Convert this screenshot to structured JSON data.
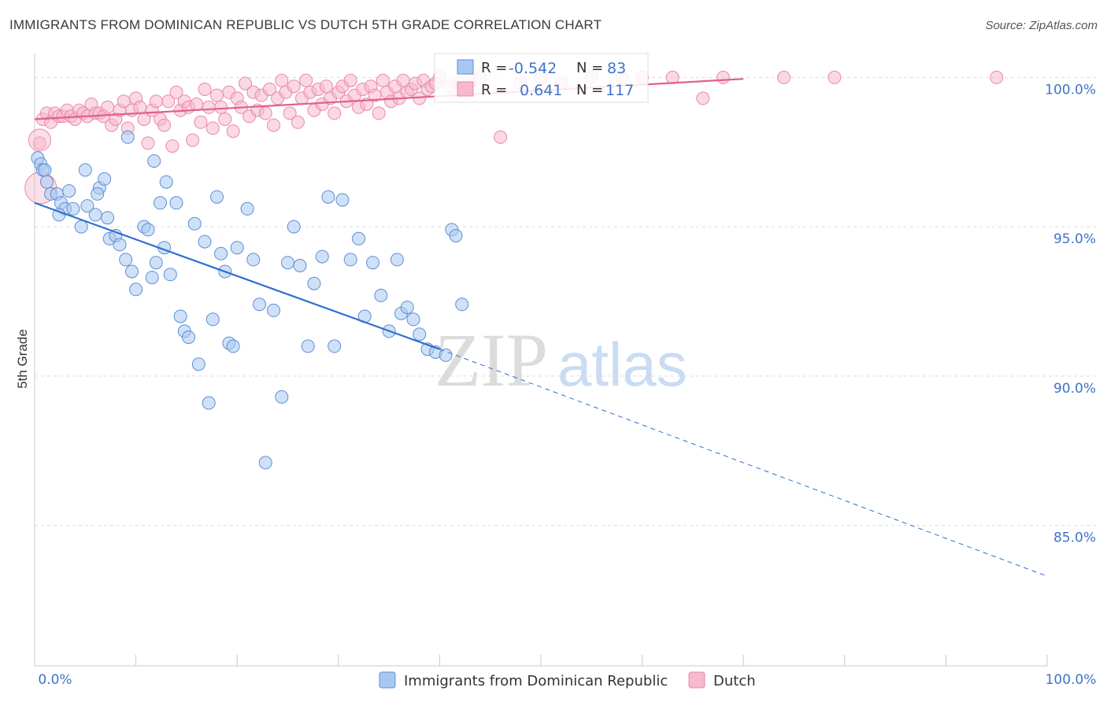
{
  "header": {
    "title": "IMMIGRANTS FROM DOMINICAN REPUBLIC VS DUTCH 5TH GRADE CORRELATION CHART",
    "source": "Source: ZipAtlas.com"
  },
  "watermark": {
    "zip": "ZIP",
    "atlas": "atlas"
  },
  "colors": {
    "blue_fill": "#a9c8f1",
    "blue_stroke": "#5b8fd6",
    "blue_line": "#2f6fd0",
    "pink_fill": "#f6b8cd",
    "pink_stroke": "#ea88aa",
    "pink_line": "#e0608d",
    "tick_text": "#3f74c9",
    "grid": "#dedede"
  },
  "legend": {
    "rows": [
      {
        "r_label": "R = ",
        "r_value": "-0.542",
        "n_label": "N = ",
        "n_value": "83",
        "series": "blue"
      },
      {
        "r_label": "R = ",
        "r_value": "0.641",
        "n_label": "N = ",
        "n_value": "117",
        "series": "pink"
      }
    ]
  },
  "chart_data": {
    "type": "scatter",
    "title": "IMMIGRANTS FROM DOMINICAN REPUBLIC VS DUTCH 5TH GRADE CORRELATION CHART",
    "xlabel": "",
    "ylabel": "5th Grade",
    "xlim": [
      0,
      100
    ],
    "ylim": [
      80.3,
      100.8
    ],
    "x_tick_labels": [
      "0.0%",
      "100.0%"
    ],
    "y_ticks": [
      85,
      90,
      95,
      100
    ],
    "y_tick_labels": [
      "85.0%",
      "90.0%",
      "95.0%",
      "100.0%"
    ],
    "grid": true,
    "legend_position": "bottom",
    "series": [
      {
        "name": "Immigrants from Dominican Republic",
        "color": "#a9c8f1",
        "r": -0.542,
        "n": 83,
        "trend": {
          "x0": 0,
          "y0": 95.8,
          "x1": 40,
          "y1": 90.9,
          "dashed_to_x": 100,
          "dashed_to_y": 83.3
        },
        "points": [
          [
            0.3,
            97.3
          ],
          [
            0.6,
            97.1
          ],
          [
            0.8,
            96.9
          ],
          [
            1.0,
            96.9
          ],
          [
            1.2,
            96.5
          ],
          [
            1.6,
            96.1
          ],
          [
            2.2,
            96.1
          ],
          [
            2.6,
            95.8
          ],
          [
            3.0,
            95.6
          ],
          [
            3.4,
            96.2
          ],
          [
            2.4,
            95.4
          ],
          [
            3.8,
            95.6
          ],
          [
            4.6,
            95.0
          ],
          [
            5.0,
            96.9
          ],
          [
            5.2,
            95.7
          ],
          [
            6.0,
            95.4
          ],
          [
            6.4,
            96.3
          ],
          [
            6.9,
            96.6
          ],
          [
            7.2,
            95.3
          ],
          [
            7.4,
            94.6
          ],
          [
            6.2,
            96.1
          ],
          [
            8.0,
            94.7
          ],
          [
            8.4,
            94.4
          ],
          [
            9.0,
            93.9
          ],
          [
            9.6,
            93.5
          ],
          [
            10.0,
            92.9
          ],
          [
            10.8,
            95.0
          ],
          [
            11.2,
            94.9
          ],
          [
            11.6,
            93.3
          ],
          [
            12.0,
            93.8
          ],
          [
            12.4,
            95.8
          ],
          [
            12.8,
            94.3
          ],
          [
            13.4,
            93.4
          ],
          [
            14.0,
            95.8
          ],
          [
            14.4,
            92.0
          ],
          [
            14.8,
            91.5
          ],
          [
            15.2,
            91.3
          ],
          [
            15.8,
            95.1
          ],
          [
            16.2,
            90.4
          ],
          [
            16.8,
            94.5
          ],
          [
            17.2,
            89.1
          ],
          [
            17.6,
            91.9
          ],
          [
            18.0,
            96.0
          ],
          [
            18.4,
            94.1
          ],
          [
            18.8,
            93.5
          ],
          [
            19.2,
            91.1
          ],
          [
            19.6,
            91.0
          ],
          [
            20.0,
            94.3
          ],
          [
            21.0,
            95.6
          ],
          [
            21.6,
            93.9
          ],
          [
            22.2,
            92.4
          ],
          [
            22.8,
            87.1
          ],
          [
            23.6,
            92.2
          ],
          [
            24.4,
            89.3
          ],
          [
            25.0,
            93.8
          ],
          [
            25.6,
            95.0
          ],
          [
            26.2,
            93.7
          ],
          [
            27.0,
            91.0
          ],
          [
            27.6,
            93.1
          ],
          [
            28.4,
            94.0
          ],
          [
            29.0,
            96.0
          ],
          [
            29.6,
            91.0
          ],
          [
            30.4,
            95.9
          ],
          [
            31.2,
            93.9
          ],
          [
            32.0,
            94.6
          ],
          [
            32.6,
            92.0
          ],
          [
            33.4,
            93.8
          ],
          [
            34.2,
            92.7
          ],
          [
            35.0,
            91.5
          ],
          [
            35.8,
            93.9
          ],
          [
            36.2,
            92.1
          ],
          [
            36.8,
            92.3
          ],
          [
            37.4,
            91.9
          ],
          [
            38.0,
            91.4
          ],
          [
            38.8,
            90.9
          ],
          [
            39.6,
            90.8
          ],
          [
            40.6,
            90.7
          ],
          [
            41.2,
            94.9
          ],
          [
            41.6,
            94.7
          ],
          [
            42.2,
            92.4
          ],
          [
            13.0,
            96.5
          ],
          [
            9.2,
            98.0
          ],
          [
            11.8,
            97.2
          ]
        ]
      },
      {
        "name": "Dutch",
        "color": "#f6b8cd",
        "r": 0.641,
        "n": 117,
        "trend": {
          "x0": 0,
          "y0": 98.6,
          "x1": 70,
          "y1": 99.95
        },
        "points": [
          [
            0.5,
            97.8
          ],
          [
            0.8,
            98.6
          ],
          [
            1.2,
            98.8
          ],
          [
            1.6,
            98.5
          ],
          [
            2.0,
            98.8
          ],
          [
            2.4,
            98.7
          ],
          [
            2.8,
            98.7
          ],
          [
            3.2,
            98.9
          ],
          [
            3.6,
            98.7
          ],
          [
            4.0,
            98.6
          ],
          [
            4.4,
            98.9
          ],
          [
            4.8,
            98.8
          ],
          [
            5.2,
            98.7
          ],
          [
            5.6,
            99.1
          ],
          [
            6.0,
            98.8
          ],
          [
            6.4,
            98.8
          ],
          [
            6.8,
            98.7
          ],
          [
            7.2,
            99.0
          ],
          [
            7.6,
            98.4
          ],
          [
            8.0,
            98.6
          ],
          [
            8.4,
            98.9
          ],
          [
            8.8,
            99.2
          ],
          [
            9.2,
            98.3
          ],
          [
            9.6,
            98.9
          ],
          [
            10.0,
            99.3
          ],
          [
            10.4,
            99.0
          ],
          [
            10.8,
            98.6
          ],
          [
            11.2,
            97.8
          ],
          [
            11.6,
            98.9
          ],
          [
            12.0,
            99.2
          ],
          [
            12.4,
            98.6
          ],
          [
            12.8,
            98.4
          ],
          [
            13.2,
            99.2
          ],
          [
            13.6,
            97.7
          ],
          [
            14.0,
            99.5
          ],
          [
            14.4,
            98.9
          ],
          [
            14.8,
            99.2
          ],
          [
            15.2,
            99.0
          ],
          [
            15.6,
            97.9
          ],
          [
            16.0,
            99.1
          ],
          [
            16.4,
            98.5
          ],
          [
            16.8,
            99.6
          ],
          [
            17.2,
            99.0
          ],
          [
            17.6,
            98.3
          ],
          [
            18.0,
            99.4
          ],
          [
            18.4,
            99.0
          ],
          [
            18.8,
            98.6
          ],
          [
            19.2,
            99.5
          ],
          [
            19.6,
            98.2
          ],
          [
            20.0,
            99.3
          ],
          [
            20.4,
            99.0
          ],
          [
            20.8,
            99.8
          ],
          [
            21.2,
            98.7
          ],
          [
            21.6,
            99.5
          ],
          [
            22.0,
            98.9
          ],
          [
            22.4,
            99.4
          ],
          [
            22.8,
            98.8
          ],
          [
            23.2,
            99.6
          ],
          [
            23.6,
            98.4
          ],
          [
            24.0,
            99.3
          ],
          [
            24.4,
            99.9
          ],
          [
            24.8,
            99.5
          ],
          [
            25.2,
            98.8
          ],
          [
            25.6,
            99.7
          ],
          [
            26.0,
            98.5
          ],
          [
            26.4,
            99.3
          ],
          [
            26.8,
            99.9
          ],
          [
            27.2,
            99.5
          ],
          [
            27.6,
            98.9
          ],
          [
            28.0,
            99.6
          ],
          [
            28.4,
            99.1
          ],
          [
            28.8,
            99.7
          ],
          [
            29.2,
            99.3
          ],
          [
            29.6,
            98.8
          ],
          [
            30.0,
            99.5
          ],
          [
            30.4,
            99.7
          ],
          [
            30.8,
            99.2
          ],
          [
            31.2,
            99.9
          ],
          [
            31.6,
            99.4
          ],
          [
            32.0,
            99.0
          ],
          [
            32.4,
            99.6
          ],
          [
            32.8,
            99.1
          ],
          [
            33.2,
            99.7
          ],
          [
            33.6,
            99.4
          ],
          [
            34.0,
            98.8
          ],
          [
            34.4,
            99.9
          ],
          [
            34.8,
            99.5
          ],
          [
            35.2,
            99.2
          ],
          [
            35.6,
            99.7
          ],
          [
            36.0,
            99.3
          ],
          [
            36.4,
            99.9
          ],
          [
            36.8,
            99.5
          ],
          [
            37.2,
            99.6
          ],
          [
            37.6,
            99.8
          ],
          [
            38.0,
            99.3
          ],
          [
            38.4,
            99.9
          ],
          [
            38.8,
            99.6
          ],
          [
            39.2,
            99.7
          ],
          [
            39.6,
            99.8
          ],
          [
            40.0,
            100.0
          ],
          [
            41.0,
            99.7
          ],
          [
            42.0,
            99.8
          ],
          [
            43.0,
            99.9
          ],
          [
            44.0,
            100.0
          ],
          [
            46.0,
            98.0
          ],
          [
            48.0,
            99.8
          ],
          [
            50.0,
            100.0
          ],
          [
            52.0,
            99.8
          ],
          [
            55.0,
            100.0
          ],
          [
            58.0,
            100.0
          ],
          [
            60.0,
            100.0
          ],
          [
            63.0,
            100.0
          ],
          [
            66.0,
            99.3
          ],
          [
            68.0,
            100.0
          ],
          [
            74.0,
            100.0
          ],
          [
            79.0,
            100.0
          ],
          [
            95.0,
            100.0
          ]
        ]
      }
    ]
  }
}
